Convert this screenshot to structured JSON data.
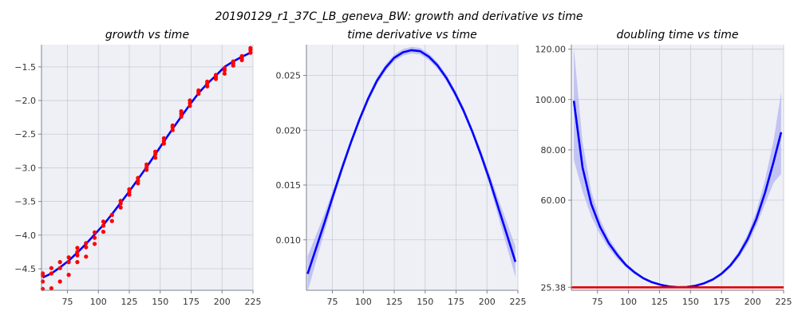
{
  "suptitle": "20190129_r1_37C_LB_geneva_BW: growth and derivative vs time",
  "colors": {
    "background": "#eef0f5",
    "grid": "#c8cbd6",
    "line": "#0000ff",
    "band": "#b4b4f2",
    "points": "#ff0000",
    "reference": "#e00000",
    "axis": "#7d8291"
  },
  "chart_data": [
    {
      "type": "line",
      "title": "growth vs time",
      "xlabel": "",
      "ylabel": "",
      "xlim": [
        54,
        225
      ],
      "ylim": [
        -4.82,
        -1.17
      ],
      "xticks": [
        75,
        100,
        125,
        150,
        175,
        200,
        225
      ],
      "yticks": [
        -4.5,
        -4.0,
        -3.5,
        -3.0,
        -2.5,
        -2.0,
        -1.5
      ],
      "ytick_labels": [
        "−4.5",
        "−4.0",
        "−3.5",
        "−3.0",
        "−2.5",
        "−2.0",
        "−1.5"
      ],
      "grid": true,
      "series": [
        {
          "kind": "line",
          "x": [
            55,
            62,
            69,
            76,
            83,
            90,
            97,
            104,
            111,
            118,
            125,
            132,
            139,
            146,
            153,
            160,
            167,
            174,
            181,
            188,
            195,
            202,
            209,
            216,
            223
          ],
          "y": [
            -4.63,
            -4.57,
            -4.48,
            -4.38,
            -4.26,
            -4.13,
            -3.99,
            -3.85,
            -3.69,
            -3.52,
            -3.35,
            -3.17,
            -2.99,
            -2.8,
            -2.61,
            -2.42,
            -2.24,
            -2.06,
            -1.89,
            -1.75,
            -1.63,
            -1.5,
            -1.42,
            -1.35,
            -1.29
          ]
        },
        {
          "kind": "scatter",
          "x": [
            55,
            55,
            55,
            55,
            62,
            62,
            62,
            69,
            69,
            69,
            76,
            76,
            76,
            83,
            83,
            83,
            83,
            90,
            90,
            90,
            97,
            97,
            97,
            104,
            104,
            104,
            111,
            111,
            118,
            118,
            118,
            125,
            125,
            125,
            132,
            132,
            132,
            139,
            139,
            139,
            146,
            146,
            146,
            153,
            153,
            153,
            160,
            160,
            160,
            167,
            167,
            167,
            174,
            174,
            174,
            181,
            181,
            181,
            188,
            188,
            188,
            195,
            195,
            195,
            202,
            202,
            202,
            209,
            209,
            209,
            216,
            216,
            216,
            223,
            223,
            223
          ],
          "y": [
            -4.8,
            -4.69,
            -4.6,
            -4.57,
            -4.79,
            -4.49,
            -4.57,
            -4.69,
            -4.4,
            -4.49,
            -4.59,
            -4.33,
            -4.4,
            -4.4,
            -4.19,
            -4.3,
            -4.25,
            -4.32,
            -4.12,
            -4.18,
            -4.13,
            -3.96,
            -4.04,
            -3.95,
            -3.8,
            -3.86,
            -3.79,
            -3.7,
            -3.59,
            -3.49,
            -3.53,
            -3.4,
            -3.32,
            -3.36,
            -3.23,
            -3.15,
            -3.19,
            -3.03,
            -2.95,
            -2.99,
            -2.85,
            -2.76,
            -2.8,
            -2.64,
            -2.56,
            -2.6,
            -2.44,
            -2.37,
            -2.4,
            -2.24,
            -2.16,
            -2.2,
            -2.08,
            -2.0,
            -2.04,
            -1.9,
            -1.85,
            -1.87,
            -1.79,
            -1.72,
            -1.75,
            -1.68,
            -1.62,
            -1.65,
            -1.6,
            -1.55,
            -1.52,
            -1.48,
            -1.42,
            -1.45,
            -1.4,
            -1.34,
            -1.37,
            -1.29,
            -1.22,
            -1.25
          ]
        }
      ]
    },
    {
      "type": "line",
      "title": "time derivative vs time",
      "xlabel": "",
      "ylabel": "",
      "xlim": [
        54,
        225
      ],
      "ylim": [
        0.0054,
        0.0278
      ],
      "xticks": [
        75,
        100,
        125,
        150,
        175,
        200,
        225
      ],
      "yticks": [
        0.01,
        0.015,
        0.02,
        0.025
      ],
      "ytick_labels": [
        "0.010",
        "0.015",
        "0.020",
        "0.025"
      ],
      "grid": true,
      "series": [
        {
          "kind": "line",
          "x": [
            55,
            62,
            69,
            76,
            83,
            90,
            97,
            104,
            111,
            118,
            125,
            132,
            139,
            146,
            153,
            160,
            167,
            174,
            181,
            188,
            195,
            202,
            209,
            216,
            223
          ],
          "y": [
            0.0069,
            0.0093,
            0.0117,
            0.0142,
            0.0166,
            0.0189,
            0.021,
            0.0229,
            0.0245,
            0.0257,
            0.0266,
            0.0271,
            0.0273,
            0.0272,
            0.0267,
            0.0259,
            0.0248,
            0.0234,
            0.0218,
            0.0199,
            0.0178,
            0.0155,
            0.013,
            0.0105,
            0.008
          ],
          "band": [
            0.0016,
            0.0012,
            0.0008,
            0.0005,
            0.0004,
            0.0003,
            0.0003,
            0.0003,
            0.0003,
            0.0003,
            0.0003,
            0.0003,
            0.0003,
            0.0003,
            0.0003,
            0.0003,
            0.0003,
            0.0003,
            0.0003,
            0.0003,
            0.0004,
            0.0005,
            0.0008,
            0.0011,
            0.0014
          ]
        }
      ]
    },
    {
      "type": "line",
      "title": "doubling time vs time",
      "xlabel": "",
      "ylabel": "",
      "xlim": [
        54,
        225
      ],
      "ylim": [
        24.2,
        121.8
      ],
      "xticks": [
        75,
        100,
        125,
        150,
        175,
        200,
        225
      ],
      "yticks": [
        25.38,
        60.0,
        80.0,
        100.0,
        120.0
      ],
      "ytick_labels": [
        "25.38",
        "60.00",
        "80.00",
        "100.00",
        "120.00"
      ],
      "grid": true,
      "series": [
        {
          "kind": "line",
          "x": [
            56,
            63,
            70,
            77,
            84,
            91,
            98,
            105,
            112,
            119,
            126,
            133,
            140,
            147,
            154,
            161,
            168,
            175,
            182,
            189,
            196,
            203,
            210,
            217,
            223
          ],
          "y": [
            99.5,
            73.0,
            58.5,
            49.5,
            43.0,
            38.2,
            34.2,
            31.3,
            29.0,
            27.4,
            26.4,
            25.7,
            25.4,
            25.5,
            26.0,
            27.0,
            28.5,
            30.8,
            34.0,
            38.5,
            44.5,
            52.5,
            63.0,
            75.5,
            87.0
          ],
          "band_low": [
            76.0,
            63.5,
            53.5,
            46.5,
            41.0,
            36.7,
            33.3,
            30.6,
            28.5,
            27.0,
            26.1,
            25.5,
            25.2,
            25.3,
            25.7,
            26.6,
            28.0,
            30.1,
            33.1,
            37.2,
            42.5,
            49.8,
            58.5,
            67.0,
            70.5
          ],
          "band_high": [
            120.5,
            83.0,
            63.5,
            52.5,
            45.0,
            39.7,
            35.1,
            32.0,
            29.5,
            27.8,
            26.7,
            25.9,
            25.6,
            25.7,
            26.3,
            27.4,
            29.0,
            31.5,
            34.9,
            39.8,
            46.5,
            55.5,
            68.0,
            84.0,
            103.0
          ]
        },
        {
          "kind": "hline",
          "y": 25.38
        }
      ]
    }
  ]
}
